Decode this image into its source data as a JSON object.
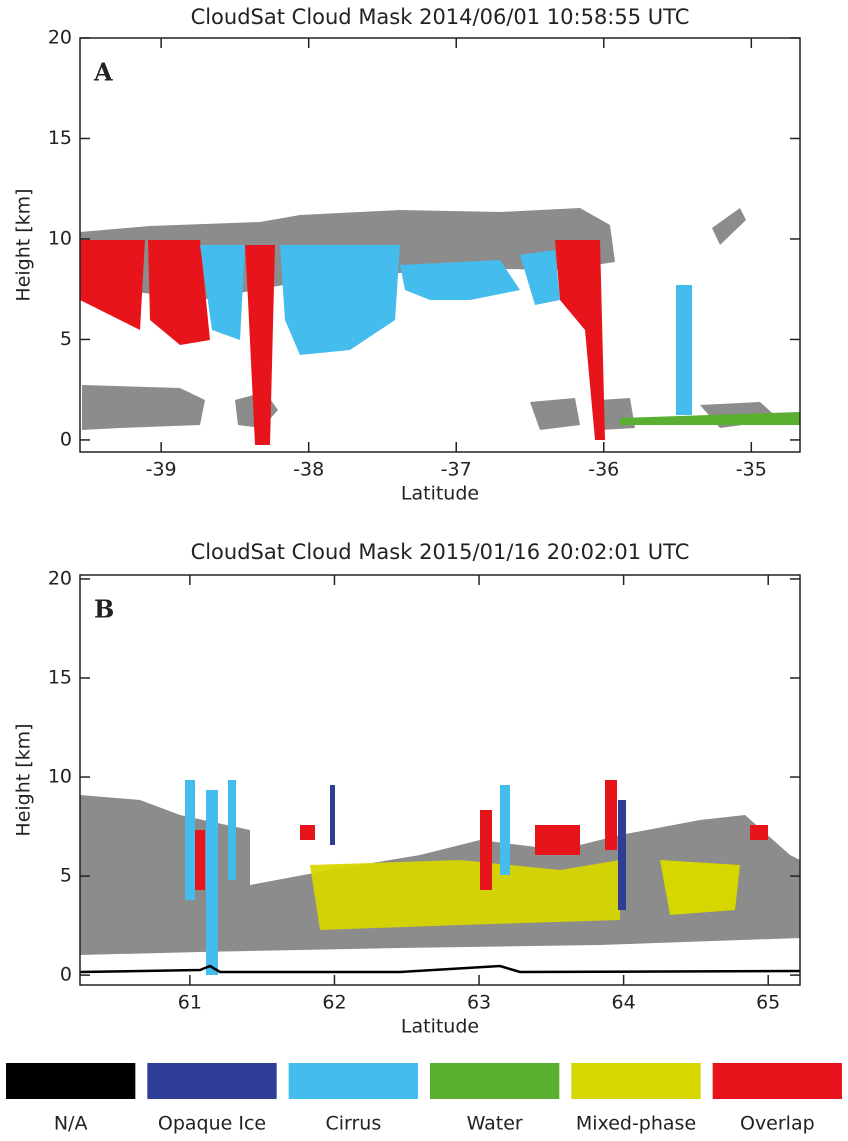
{
  "chart_data": [
    {
      "type": "mask",
      "title": "CloudSat Cloud Mask 2014/06/01 10:58:55 UTC",
      "panel_label": "A",
      "xlabel": "Latitude",
      "ylabel": "Height [km]",
      "xlim": [
        -39.55,
        -34.67
      ],
      "xticks": [
        -39,
        -38,
        -37,
        -36,
        -35
      ],
      "ylim": [
        -0.6,
        20
      ],
      "yticks": [
        0,
        5,
        10,
        15,
        20
      ]
    },
    {
      "type": "mask",
      "title": "CloudSat Cloud Mask 2015/01/16 20:02:01 UTC",
      "panel_label": "B",
      "xlabel": "Latitude",
      "ylabel": "Height [km]",
      "xlim": [
        60.24,
        65.22
      ],
      "xticks": [
        61,
        62,
        63,
        64,
        65
      ],
      "ylim": [
        -0.5,
        20.2
      ],
      "yticks": [
        0,
        5,
        10,
        15,
        20
      ]
    }
  ],
  "legend": {
    "items": [
      {
        "name": "N/A",
        "color": "#000000"
      },
      {
        "name": "Opaque Ice",
        "color": "#2f3d96"
      },
      {
        "name": "Cirrus",
        "color": "#44bdee"
      },
      {
        "name": "Water",
        "color": "#5aae30"
      },
      {
        "name": "Mixed-phase",
        "color": "#d6d600"
      },
      {
        "name": "Overlap",
        "color": "#e8141c"
      }
    ]
  }
}
